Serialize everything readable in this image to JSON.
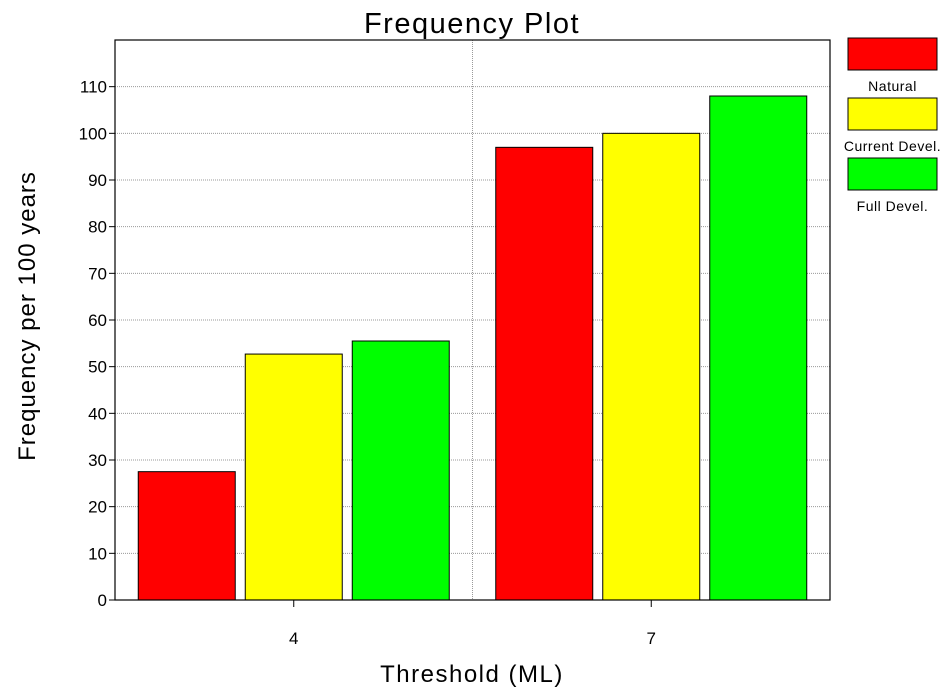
{
  "chart_data": {
    "type": "bar",
    "title": "Frequency Plot",
    "xlabel": "Threshold (ML)",
    "ylabel": "Frequency per 100 years",
    "categories": [
      "4",
      "7"
    ],
    "ylim": [
      0,
      120
    ],
    "yticks": [
      0,
      10,
      20,
      30,
      40,
      50,
      60,
      70,
      80,
      90,
      100,
      110
    ],
    "grid": true,
    "legend_position": "right",
    "series": [
      {
        "name": "Natural",
        "color": "#ff0000",
        "values": [
          27.5,
          97
        ]
      },
      {
        "name": "Current Devel.",
        "color": "#ffff00",
        "values": [
          52.7,
          100
        ]
      },
      {
        "name": "Full Devel.",
        "color": "#00ff00",
        "values": [
          55.5,
          108
        ]
      }
    ]
  }
}
